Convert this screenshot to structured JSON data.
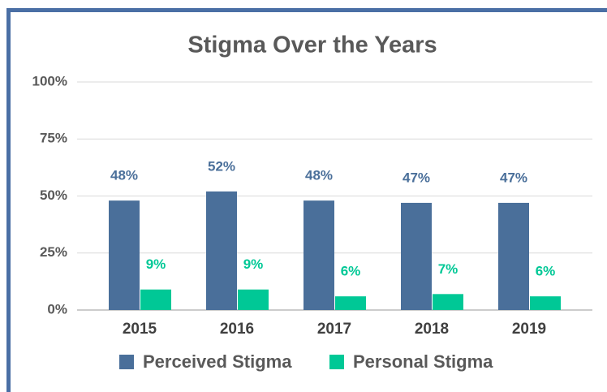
{
  "chart_data": {
    "type": "bar",
    "title": "Stigma Over the Years",
    "categories": [
      "2015",
      "2016",
      "2017",
      "2018",
      "2019"
    ],
    "series": [
      {
        "name": "Perceived Stigma",
        "color": "#4a6f9a",
        "values": [
          48,
          52,
          48,
          47,
          47
        ],
        "value_labels": [
          "48%",
          "52%",
          "48%",
          "47%",
          "47%"
        ]
      },
      {
        "name": "Personal Stigma",
        "color": "#00c896",
        "values": [
          9,
          9,
          6,
          7,
          6
        ],
        "value_labels": [
          "9%",
          "9%",
          "6%",
          "7%",
          "6%"
        ]
      }
    ],
    "ylim": [
      0,
      100
    ],
    "yticks": [
      {
        "value": 0,
        "label": "0%"
      },
      {
        "value": 25,
        "label": "25%"
      },
      {
        "value": 50,
        "label": "50%"
      },
      {
        "value": 75,
        "label": "75%"
      },
      {
        "value": 100,
        "label": "100%"
      }
    ],
    "grid": true,
    "legend": "bottom"
  }
}
